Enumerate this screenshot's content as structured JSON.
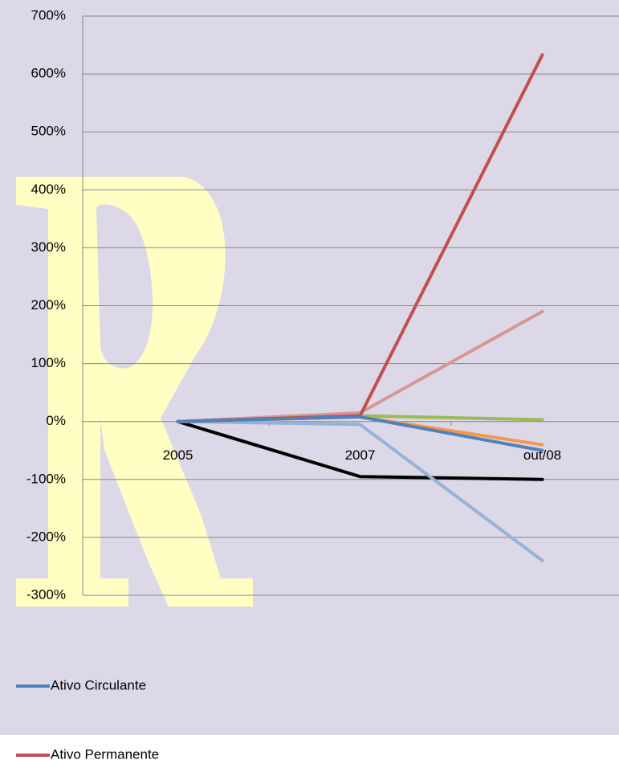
{
  "chart_data": {
    "type": "line",
    "categories": [
      "2005",
      "2007",
      "out/08"
    ],
    "series": [
      {
        "name": "Ativo Circulante",
        "color": "#4f81bd",
        "values": [
          0,
          8,
          -50
        ]
      },
      {
        "name": "Ativo Permanente",
        "color": "#c0504d",
        "values": [
          0,
          10,
          633
        ]
      },
      {
        "color": "#9bbb59",
        "values": [
          0,
          10,
          3
        ]
      },
      {
        "color": "#d99694",
        "values": [
          0,
          15,
          190
        ]
      },
      {
        "color": "#f79646",
        "values": [
          0,
          8,
          -40
        ]
      },
      {
        "color": "#95b3d7",
        "values": [
          0,
          -5,
          -240
        ]
      },
      {
        "color": "#000000",
        "values": [
          0,
          -95,
          -100
        ]
      }
    ],
    "ylim": [
      -300,
      700
    ],
    "yticks": [
      {
        "value": -300,
        "label": "-300%"
      },
      {
        "value": -200,
        "label": "-200%"
      },
      {
        "value": -100,
        "label": "-100%"
      },
      {
        "value": 0,
        "label": "0%"
      },
      {
        "value": 100,
        "label": "100%"
      },
      {
        "value": 200,
        "label": "200%"
      },
      {
        "value": 300,
        "label": "300%"
      },
      {
        "value": 400,
        "label": "400%"
      },
      {
        "value": 500,
        "label": "500%"
      },
      {
        "value": 600,
        "label": "600%"
      },
      {
        "value": 700,
        "label": "700%"
      }
    ],
    "grid": true
  }
}
